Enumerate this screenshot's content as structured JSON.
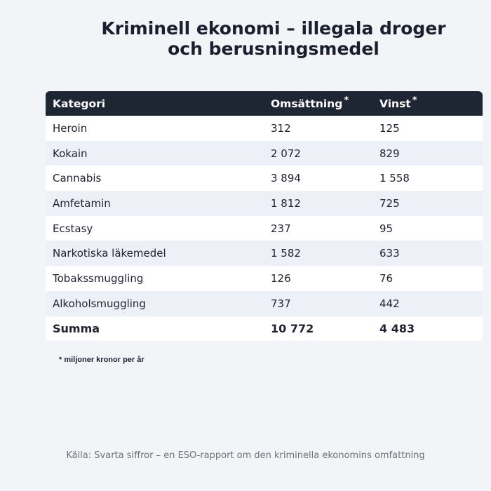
{
  "title_line1": "Kriminell ekonomi – illegala droger",
  "title_line2": "och berusningsmedel",
  "table": {
    "headers": [
      "Kategori",
      "Omsättning",
      "Vinst"
    ],
    "header_marker": "*",
    "rows": [
      [
        "Heroin",
        "312",
        "125"
      ],
      [
        "Kokain",
        "2 072",
        "829"
      ],
      [
        "Cannabis",
        "3 894",
        "1 558"
      ],
      [
        "Amfetamin",
        "1 812",
        "725"
      ],
      [
        "Ecstasy",
        "237",
        "95"
      ],
      [
        "Narkotiska läkemedel",
        "1 582",
        "633"
      ],
      [
        "Tobakssmuggling",
        "126",
        "76"
      ],
      [
        "Alkoholsmuggling",
        "737",
        "442"
      ]
    ],
    "total": [
      "Summa",
      "10 772",
      "4 483"
    ]
  },
  "footnote": "* miljoner kronor per år",
  "source": "Källa: Svarta siffror – en ESO-rapport om den kriminella ekonomins omfattning"
}
